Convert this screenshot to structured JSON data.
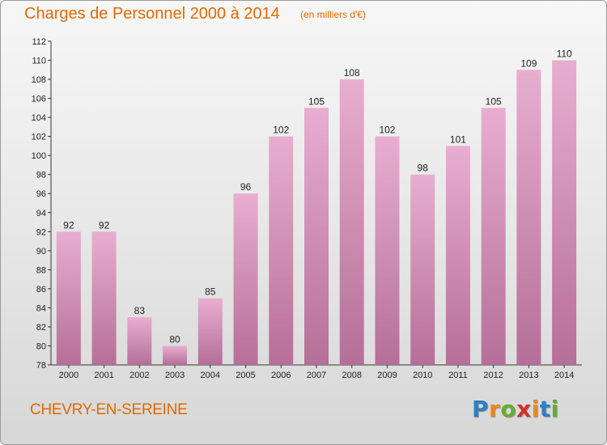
{
  "header": {
    "title": "Charges de Personnel 2000 à 2014",
    "subtitle": "(en milliers d'€)"
  },
  "footer": {
    "commune": "CHEVRY-EN-SEREINE",
    "brand": "Proxiti",
    "brand_letters": [
      {
        "ch": "P",
        "color": "#2e7fc4"
      },
      {
        "ch": "r",
        "color": "#e9891c"
      },
      {
        "ch": "o",
        "color": "#67ad34"
      },
      {
        "ch": "x",
        "color": "#d0312d"
      },
      {
        "ch": "i",
        "color": "#e9891c"
      },
      {
        "ch": "t",
        "color": "#2e7fc4"
      },
      {
        "ch": "i",
        "color": "#67ad34"
      }
    ]
  },
  "colors": {
    "bar_light": "#e8aed0",
    "bar_dark": "#b56f98",
    "title": "#e06a00"
  },
  "chart_data": {
    "type": "bar",
    "categories": [
      "2000",
      "2001",
      "2002",
      "2003",
      "2004",
      "2005",
      "2006",
      "2007",
      "2008",
      "2009",
      "2010",
      "2011",
      "2012",
      "2013",
      "2014"
    ],
    "values": [
      92,
      92,
      83,
      80,
      85,
      96,
      102,
      105,
      108,
      102,
      98,
      101,
      105,
      109,
      110
    ],
    "title": "Charges de Personnel 2000 à 2014",
    "subtitle": "(en milliers d'€)",
    "xlabel": "",
    "ylabel": "",
    "ylim": [
      78,
      112
    ],
    "yticks": [
      78,
      80,
      82,
      84,
      86,
      88,
      90,
      92,
      94,
      96,
      98,
      100,
      102,
      104,
      106,
      108,
      110,
      112
    ],
    "grid": false,
    "data_labels": true
  }
}
